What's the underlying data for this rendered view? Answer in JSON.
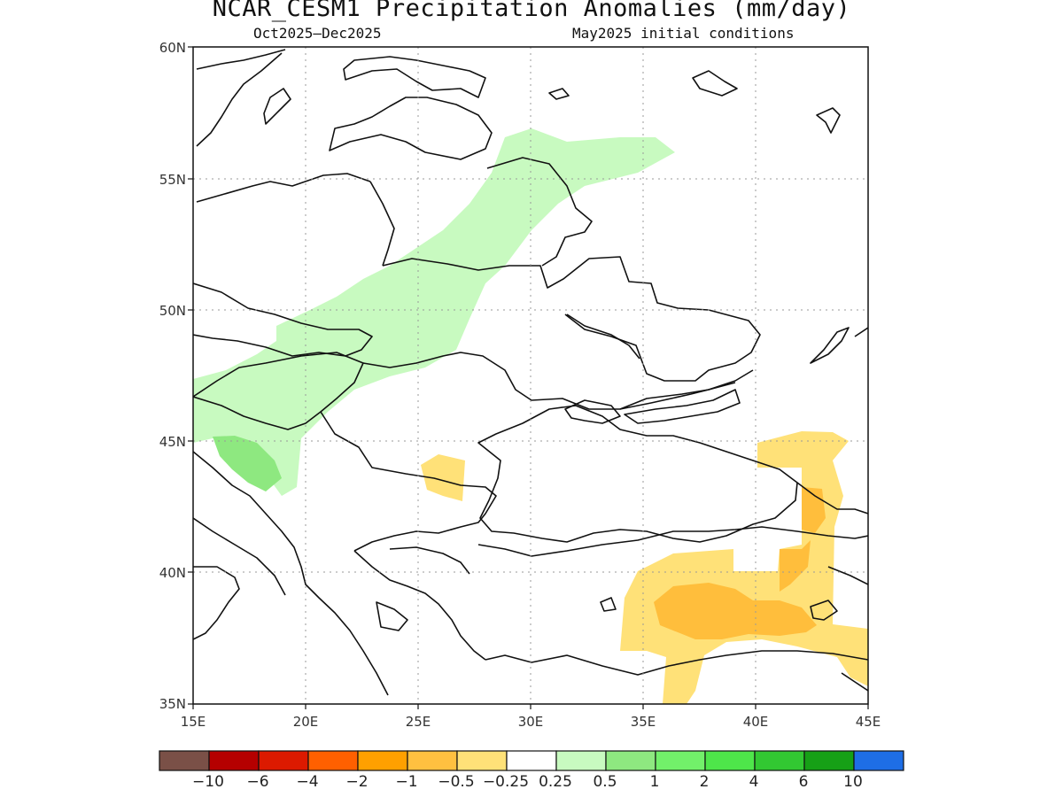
{
  "title": "NCAR_CESM1 Precipitation Anomalies (mm/day)",
  "period": "Oct2025–Dec2025",
  "init": "May2025 initial conditions",
  "lat_labels": [
    "60N",
    "55N",
    "50N",
    "45N",
    "40N",
    "35N"
  ],
  "lon_labels": [
    "15E",
    "20E",
    "25E",
    "30E",
    "35E",
    "40E",
    "45E"
  ],
  "colors": {
    "wet_light": "#c8fac0",
    "wet_mid": "#8ee880",
    "dry_light": "#ffe178",
    "dry_mid": "#ffbe3c",
    "coast": "#111111"
  },
  "colorbar": {
    "colors": [
      "#7a5047",
      "#b50000",
      "#dc1a00",
      "#ff6000",
      "#ffa000",
      "#ffc040",
      "#ffe178",
      "#ffffff",
      "#c8fac0",
      "#8ee880",
      "#72f06a",
      "#4ee64a",
      "#32c832",
      "#16a016",
      "#1e6ee6"
    ],
    "labels": [
      "−10",
      "−6",
      "−4",
      "−2",
      "−1",
      "−0.5",
      "−0.25",
      "0.25",
      "0.5",
      "1",
      "2",
      "4",
      "6",
      "10"
    ]
  }
}
